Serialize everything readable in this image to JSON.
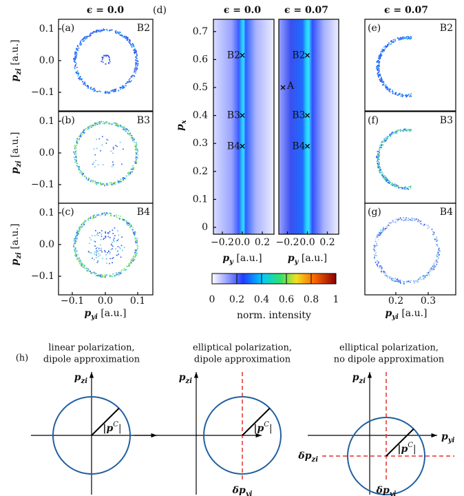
{
  "column_titles": [
    "ϵ = 0.0",
    "ϵ = 0.0",
    "ϵ = 0.07",
    "ϵ = 0.07"
  ],
  "left_panels": [
    {
      "label": "(a)",
      "tag": "B2"
    },
    {
      "label": "(b)",
      "tag": "B3"
    },
    {
      "label": "(c)",
      "tag": "B4"
    }
  ],
  "left_axes": {
    "yticks": [
      "0.1",
      "0.0",
      "−0.1"
    ],
    "xticks": [
      "−0.1",
      "0.0",
      "0.1"
    ],
    "ylabel": {
      "symbol": "p",
      "sub": "zi",
      "unit": " [a.u.]"
    },
    "xlabel": {
      "symbol": "p",
      "sub": "yi",
      "unit": " [a.u.]"
    }
  },
  "middle": {
    "label": "(d)",
    "yticks": [
      "0",
      "0.1",
      "0.2",
      "0.3",
      "0.4",
      "0.5",
      "0.6",
      "0.7"
    ],
    "xticks": [
      "−0.2",
      "0.0",
      "0.2"
    ],
    "ylabel": {
      "symbol": "p",
      "sub": "x"
    },
    "xlabel": {
      "symbol": "p",
      "sub": "y",
      "unit": " [a.u.]"
    },
    "markers": [
      "B2",
      "B3",
      "B4"
    ],
    "marker_a": "A"
  },
  "colorbar": {
    "ticks": [
      "0",
      "0.2",
      "0.4",
      "0.6",
      "0.8",
      "1"
    ],
    "label": "norm. intensity"
  },
  "right_panels": [
    {
      "label": "(e)",
      "tag": "B2"
    },
    {
      "label": "(f)",
      "tag": "B3"
    },
    {
      "label": "(g)",
      "tag": "B4"
    }
  ],
  "right_axes": {
    "xticks": [
      "0.2",
      "0.3"
    ],
    "xlabel": {
      "symbol": "p",
      "sub": "yi",
      "unit": " [a.u.]"
    }
  },
  "sketch": {
    "label": "(h)",
    "titles": [
      [
        "linear polarization,",
        "dipole approximation"
      ],
      [
        "elliptical polarization,",
        "dipole approximation"
      ],
      [
        "elliptical polarization,",
        "no dipole approximation"
      ]
    ],
    "axis_z": {
      "symbol": "p",
      "sub": "zi"
    },
    "axis_y": {
      "symbol": "p",
      "sub": "yi"
    },
    "radius": {
      "symbol": "|p",
      "sup": "C",
      "unit": "|"
    },
    "shift_y": {
      "symbol": "δp",
      "sub": "yi"
    },
    "shift_z": {
      "symbol": "δp",
      "sub": "zi"
    }
  }
}
